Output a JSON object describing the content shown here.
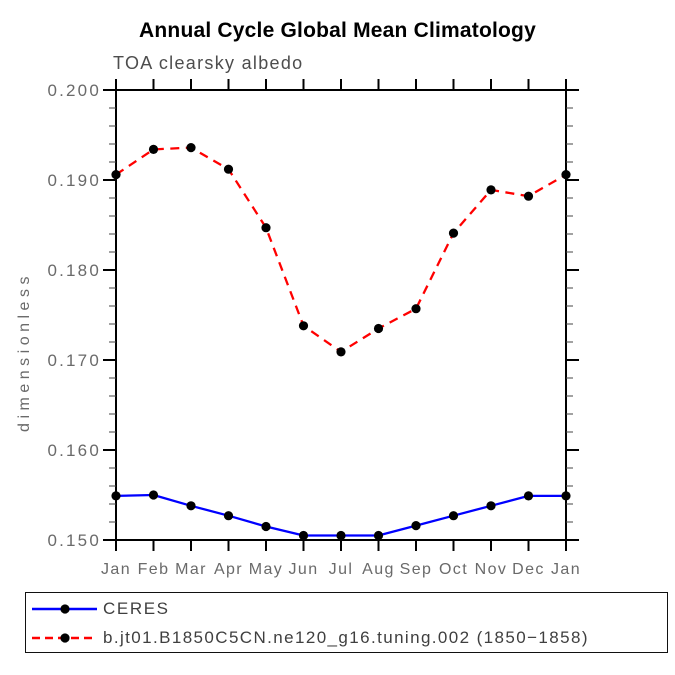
{
  "chart_data": {
    "type": "line",
    "title": "Annual Cycle Global Mean Climatology",
    "subtitle": "TOA clearsky albedo",
    "ylabel": "dimensionless",
    "xlabel": "",
    "categories": [
      "Jan",
      "Feb",
      "Mar",
      "Apr",
      "May",
      "Jun",
      "Jul",
      "Aug",
      "Sep",
      "Oct",
      "Nov",
      "Dec",
      "Jan"
    ],
    "ylim": [
      0.15,
      0.2
    ],
    "yticks": [
      0.15,
      0.16,
      0.17,
      0.18,
      0.19,
      0.2
    ],
    "ytick_labels": [
      "0.150",
      "0.160",
      "0.170",
      "0.180",
      "0.190",
      "0.200"
    ],
    "y_minor_step": 0.002,
    "grid": false,
    "legend_position": "bottom-left-box",
    "series": [
      {
        "name": "CERES",
        "color": "#0000ff",
        "style": "solid",
        "marker": "filled-circle",
        "marker_color": "#000000",
        "values": [
          0.1549,
          0.155,
          0.1538,
          0.1527,
          0.1515,
          0.1505,
          0.1505,
          0.1505,
          0.1516,
          0.1527,
          0.1538,
          0.1549,
          0.1549
        ]
      },
      {
        "name": "b.jt01.B1850C5CN.ne120_g16.tuning.002 (1850−1858)",
        "color": "#ff0000",
        "style": "dashed",
        "marker": "filled-circle",
        "marker_color": "#000000",
        "values": [
          0.1906,
          0.1934,
          0.1936,
          0.1912,
          0.1847,
          0.1738,
          0.1709,
          0.1735,
          0.1757,
          0.1841,
          0.1889,
          0.1882,
          0.1906
        ]
      }
    ]
  },
  "colors": {
    "ceres_line": "#0000ff",
    "model_line": "#ff0000",
    "marker": "#000000",
    "axis": "#000000",
    "tick_label": "#6a6a6a",
    "subtitle_text": "#4d4d4d",
    "legend_text": "#3f3f3f"
  }
}
